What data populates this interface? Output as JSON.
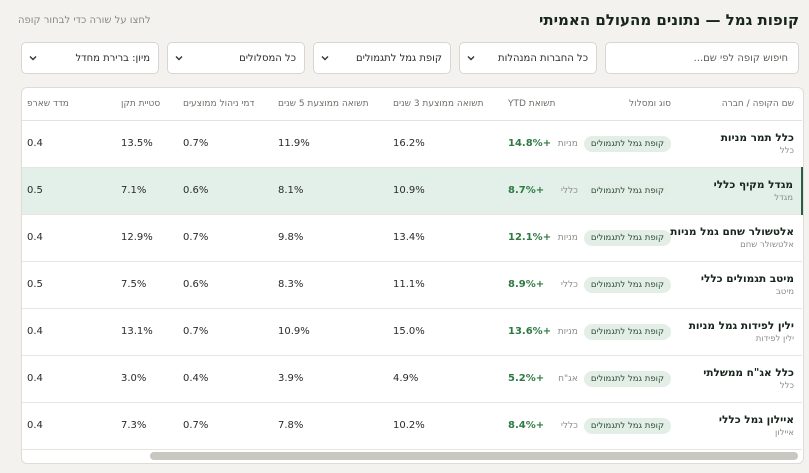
{
  "header": {
    "title": "קופות גמל — נתונים מהעולם האמיתי",
    "hint": "לחצו על שורה כדי לבחור קופה"
  },
  "filters": {
    "search_placeholder": "חיפוש קופה לפי שם...",
    "company_select": "כל החברות המנהלות",
    "type_select": "קופת גמל לתגמולים",
    "track_select": "כל המסלולים",
    "sort_select": "מיון: ברירת מחדל"
  },
  "table": {
    "columns": {
      "fund": "שם הקופה / חברה",
      "type": "סוג ומסלול",
      "ytd": "תשואת YTD",
      "ret3": "תשואה ממוצעת 3 שנים",
      "ret5": "תשואה ממוצעת 5 שנים",
      "fee": "דמי ניהול ממוצעים",
      "stdev": "סטיית תקן",
      "sharpe": "מדד שארפ"
    },
    "rows": [
      {
        "name": "כלל תמר מניות",
        "company": "כלל",
        "badge": "קופת גמל לתגמולים",
        "track": "מניות",
        "ytd": "+14.8%",
        "ret3": "16.2%",
        "ret5": "11.9%",
        "fee": "0.7%",
        "stdev": "13.5%",
        "sharpe": "0.4"
      },
      {
        "name": "מגדל מקיף כללי",
        "company": "מגדל",
        "badge": "קופת גמל לתגמולים",
        "track": "כללי",
        "ytd": "+8.7%",
        "ret3": "10.9%",
        "ret5": "8.1%",
        "fee": "0.6%",
        "stdev": "7.1%",
        "sharpe": "0.5"
      },
      {
        "name": "אלטשולר שחם גמל מניות",
        "company": "אלטשולר שחם",
        "badge": "קופת גמל לתגמולים",
        "track": "מניות",
        "ytd": "+12.1%",
        "ret3": "13.4%",
        "ret5": "9.8%",
        "fee": "0.7%",
        "stdev": "12.9%",
        "sharpe": "0.4"
      },
      {
        "name": "מיטב תגמולים כללי",
        "company": "מיטב",
        "badge": "קופת גמל לתגמולים",
        "track": "כללי",
        "ytd": "+8.9%",
        "ret3": "11.1%",
        "ret5": "8.3%",
        "fee": "0.6%",
        "stdev": "7.5%",
        "sharpe": "0.5"
      },
      {
        "name": "ילין לפידות גמל מניות",
        "company": "ילין לפידות",
        "badge": "קופת גמל לתגמולים",
        "track": "מניות",
        "ytd": "+13.6%",
        "ret3": "15.0%",
        "ret5": "10.9%",
        "fee": "0.7%",
        "stdev": "13.1%",
        "sharpe": "0.4"
      },
      {
        "name": "כלל אג\"ח ממשלתי",
        "company": "כלל",
        "badge": "קופת גמל לתגמולים",
        "track": "אג\"ח",
        "ytd": "+5.2%",
        "ret3": "4.9%",
        "ret5": "3.9%",
        "fee": "0.4%",
        "stdev": "3.0%",
        "sharpe": "0.4"
      },
      {
        "name": "איילון גמל כללי",
        "company": "איילון",
        "badge": "קופת גמל לתגמולים",
        "track": "כללי",
        "ytd": "+8.4%",
        "ret3": "10.2%",
        "ret5": "7.8%",
        "fee": "0.7%",
        "stdev": "7.3%",
        "sharpe": "0.4"
      }
    ],
    "selected_row": 1
  }
}
